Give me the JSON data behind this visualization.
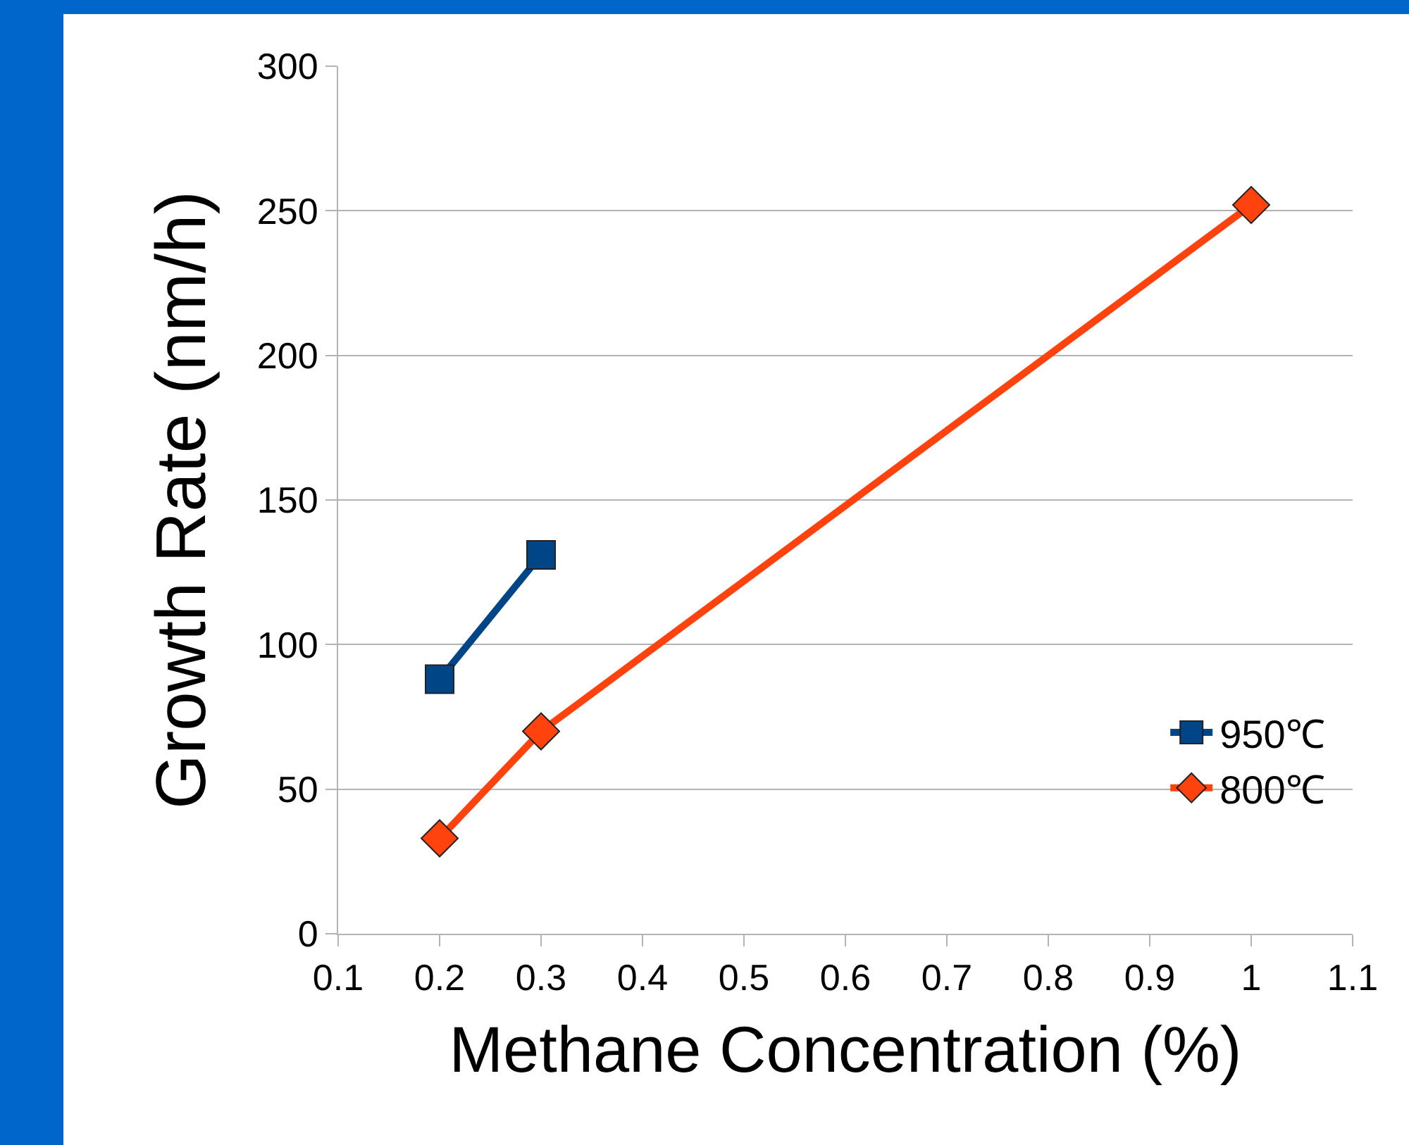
{
  "chart_data": {
    "type": "line",
    "xlabel": "Methane Concentration (%)",
    "ylabel": "Growth Rate (nm/h)",
    "xlim": [
      0.1,
      1.1
    ],
    "xticks": [
      0.1,
      0.2,
      0.3,
      0.4,
      0.5,
      0.6,
      0.7,
      0.8,
      0.9,
      1,
      1.1
    ],
    "ylim": [
      0,
      300
    ],
    "yticks": [
      0,
      50,
      100,
      150,
      200,
      250,
      300
    ],
    "grid": "y",
    "legend": "right",
    "series": [
      {
        "name": "950℃",
        "color": "#004586",
        "marker": "square",
        "x": [
          0.2,
          0.3
        ],
        "values": [
          88,
          131
        ]
      },
      {
        "name": "800℃",
        "color": "#ff420e",
        "marker": "diamond",
        "x": [
          0.2,
          0.3,
          1
        ],
        "values": [
          33,
          70,
          252
        ]
      }
    ]
  }
}
